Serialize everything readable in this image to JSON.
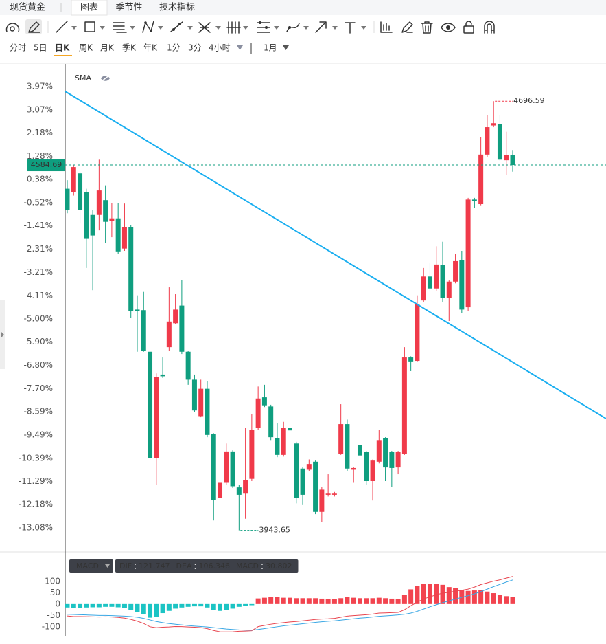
{
  "header": {
    "title": "现货黄金",
    "tabs": [
      "图表",
      "季节性",
      "技术指标"
    ]
  },
  "periods": [
    "分时",
    "5日",
    "日K",
    "周K",
    "月K",
    "季K",
    "年K",
    "1分",
    "3分",
    "4小时"
  ],
  "range": "1月",
  "chart_data": [
    {
      "type": "candlestick",
      "indicator": "SMA",
      "up_color": "#f03a4a",
      "down_color": "#0f9e7f",
      "open": [
        4543,
        4537,
        4570,
        4537,
        4497,
        4497,
        4523,
        4486,
        4491,
        4438,
        4476,
        4331,
        4330,
        4257,
        4071,
        4217,
        4265,
        4307,
        4338,
        4257,
        4208,
        4144,
        4192,
        4112,
        4001,
        4027,
        4082,
        4019,
        4008,
        4034,
        4124,
        4177,
        4161,
        4105,
        4076,
        4123,
        4096,
        4052,
        4050,
        4064,
        3976,
        4006,
        4006,
        4078,
        4130,
        4050,
        4093,
        4081,
        4030,
        4064,
        4105,
        4081,
        4054,
        4078,
        4247,
        4241,
        4347,
        4389,
        4368,
        4409,
        4351,
        4380,
        4418,
        4335,
        4524,
        4516,
        4603,
        4654,
        4657,
        4593,
        4602
      ],
      "high": [
        4558,
        4585,
        4573,
        4543,
        4506,
        4594,
        4549,
        4518,
        4518,
        4517,
        4479,
        4356,
        4362,
        4259,
        4219,
        4247,
        4370,
        4358,
        4383,
        4259,
        4217,
        4208,
        4205,
        4114,
        4030,
        4096,
        4084,
        4023,
        4123,
        4147,
        4196,
        4199,
        4164,
        4132,
        4134,
        4136,
        4099,
        4054,
        4068,
        4066,
        4020,
        4042,
        4011,
        4165,
        4138,
        4055,
        4114,
        4083,
        4068,
        4120,
        4107,
        4083,
        4083,
        4265,
        4249,
        4356,
        4404,
        4413,
        4442,
        4450,
        4382,
        4428,
        4434,
        4527,
        4527,
        4633,
        4672,
        4696.59,
        4672,
        4643,
        4611
      ],
      "low": [
        4500,
        4531,
        4482,
        4404,
        4365,
        4470,
        4448,
        4458,
        4428,
        4434,
        4316,
        4257,
        4257,
        4066,
        4024,
        4211,
        4259,
        4305,
        4253,
        4199,
        4151,
        4142,
        4107,
        3961,
        3961,
        4024,
        4018,
        3943.65,
        3964,
        4030,
        4120,
        4160,
        4102,
        4072,
        4073,
        4117,
        3991,
        3988,
        4047,
        3972,
        3958,
        4003,
        4003,
        4076,
        4048,
        4027,
        4071,
        4024,
        3996,
        4061,
        4030,
        4020,
        4042,
        4076,
        4223,
        4239,
        4344,
        4362,
        4364,
        4344,
        4311,
        4377,
        4325,
        4329,
        4509,
        4514,
        4599,
        4651,
        4592,
        4567,
        4573
      ],
      "close": [
        4506,
        4581,
        4506,
        4455,
        4461,
        4540,
        4485,
        4491,
        4433,
        4476,
        4328,
        4328,
        4259,
        4070,
        4213,
        4214,
        4310,
        4331,
        4257,
        4208,
        4154,
        4192,
        4111,
        3997,
        4027,
        4082,
        4021,
        4006,
        4032,
        4120,
        4175,
        4163,
        4107,
        4076,
        4123,
        4119,
        4001,
        4006,
        4060,
        3976,
        4015,
        4008,
        4008,
        4130,
        4052,
        4053,
        4075,
        4030,
        4066,
        4102,
        4054,
        4053,
        4081,
        4247,
        4240,
        4340,
        4389,
        4368,
        4410,
        4352,
        4380,
        4416,
        4331,
        4524,
        4522,
        4603,
        4651,
        4658,
        4594,
        4602,
        4584.69
      ],
      "ylim": [
        3907,
        4762
      ],
      "yticks": [
        {
          "value": 4722.3,
          "label": "3.97%"
        },
        {
          "value": 4681.4,
          "label": "3.07%"
        },
        {
          "value": 4641.0,
          "label": "2.18%"
        },
        {
          "value": 4600.1,
          "label": "1.28%"
        },
        {
          "value": 4559.3,
          "label": "0.38%"
        },
        {
          "value": 4518.4,
          "label": "-0.52%"
        },
        {
          "value": 4478.0,
          "label": "-1.41%"
        },
        {
          "value": 4437.1,
          "label": "-2.31%"
        },
        {
          "value": 4396.2,
          "label": "-3.21%"
        },
        {
          "value": 4355.3,
          "label": "-4.11%"
        },
        {
          "value": 4314.9,
          "label": "-5.00%"
        },
        {
          "value": 4274.0,
          "label": "-5.90%"
        },
        {
          "value": 4233.1,
          "label": "-6.80%"
        },
        {
          "value": 4192.3,
          "label": "-7.70%"
        },
        {
          "value": 4151.8,
          "label": "-8.59%"
        },
        {
          "value": 4111.0,
          "label": "-9.49%"
        },
        {
          "value": 4070.1,
          "label": "-10.39%"
        },
        {
          "value": 4029.2,
          "label": "-11.29%"
        },
        {
          "value": 3988.8,
          "label": "-12.18%"
        },
        {
          "value": 3947.9,
          "label": "-13.08%"
        }
      ]
    },
    {
      "type": "macd",
      "title": "MACD",
      "series": [
        {
          "name": "DIF",
          "color": "#e8454f",
          "style": "line",
          "values": [
            -52.5,
            -55,
            -55,
            -55.5,
            -56,
            -57,
            -56,
            -57,
            -59,
            -62,
            -67.5,
            -75.5,
            -85.5,
            -100,
            -104.5,
            -102,
            -101,
            -99,
            -99.5,
            -101,
            -102,
            -104,
            -108.5,
            -116.5,
            -122,
            -122.5,
            -122,
            -120,
            -119,
            -117.5,
            -99.5,
            -94,
            -89,
            -85,
            -82,
            -79,
            -77,
            -74,
            -71,
            -68,
            -66,
            -65,
            -63,
            -58,
            -53,
            -51,
            -49,
            -47,
            -44,
            -40,
            -39,
            -38,
            -37,
            -25,
            -7.5,
            8,
            23,
            32,
            41,
            48.5,
            51.5,
            57,
            61,
            66,
            75,
            86,
            93.5,
            101,
            107,
            114.5,
            121.747
          ]
        },
        {
          "name": "DEA",
          "color": "#3aa7e4",
          "style": "line",
          "values": [
            -45,
            -46,
            -47,
            -48,
            -49,
            -50,
            -50,
            -51,
            -52,
            -53,
            -55,
            -58,
            -63,
            -70,
            -77,
            -82,
            -86,
            -89,
            -92,
            -95,
            -97,
            -99,
            -101,
            -104,
            -107,
            -110,
            -112,
            -114,
            -115,
            -115,
            -112,
            -108,
            -104,
            -100,
            -96,
            -93,
            -90,
            -87,
            -84,
            -81,
            -78,
            -76,
            -74,
            -71,
            -68,
            -65,
            -62,
            -60,
            -57,
            -54,
            -52,
            -50,
            -48,
            -45,
            -40,
            -32,
            -22,
            -12,
            -3,
            6,
            14,
            22,
            30,
            37,
            45,
            55,
            66,
            77,
            87,
            97,
            106.346
          ]
        },
        {
          "name": "MACD",
          "color": "#f2444f",
          "negative_color": "#1cc4c4",
          "style": "histogram",
          "values": [
            -15,
            -18,
            -16,
            -15,
            -14,
            -14,
            -12,
            -12,
            -14,
            -18,
            -25,
            -35,
            -45,
            -60,
            -55,
            -40,
            -30,
            -20,
            -15,
            -12,
            -10,
            -10,
            -15,
            -25,
            -30,
            -25,
            -20,
            -12,
            -8,
            -5,
            25,
            28,
            30,
            30,
            28,
            28,
            26,
            26,
            26,
            26,
            24,
            22,
            22,
            26,
            30,
            28,
            26,
            26,
            26,
            28,
            26,
            24,
            22,
            40,
            65,
            80,
            90,
            88,
            88,
            85,
            75,
            70,
            62,
            58,
            60,
            62,
            55,
            48,
            40,
            35,
            30.802
          ]
        }
      ],
      "ylim": [
        -140,
        215
      ],
      "yticks": [
        100,
        50,
        0,
        -50,
        -100
      ]
    }
  ]
}
